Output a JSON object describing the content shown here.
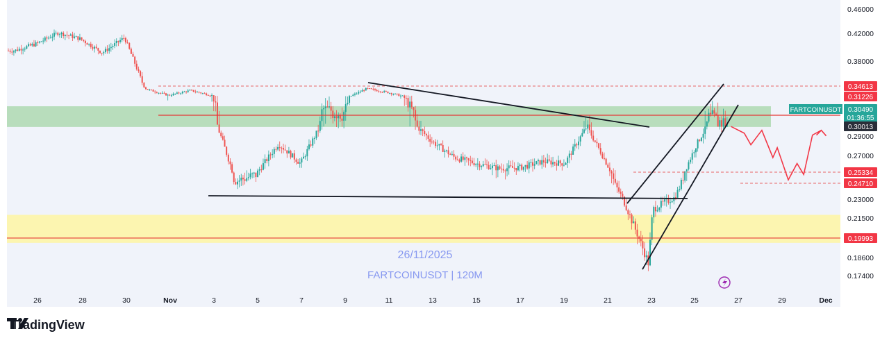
{
  "app": {
    "brand": "TradingView",
    "colors": {
      "background": "#ffffff",
      "chart_background": "#f0f3fa",
      "up": "#26a69a",
      "down": "#ef5350",
      "green_zone": "#a5d6a7",
      "yellow_zone": "#fff59d",
      "red_line": "#e53935",
      "trendline": "#131722",
      "forecast": "#f23645",
      "watermark": "#7c8ff0"
    }
  },
  "chart_data": {
    "type": "candlestick",
    "symbol": "FARTCOINUSDT",
    "timeframe": "120M",
    "watermark_date": "26/11/2025",
    "watermark_symbol": "FARTCOINUSDT | 120M",
    "y_axis_ticks": [
      "0.46000",
      "0.42000",
      "0.38000",
      "0.29000",
      "0.27000",
      "0.23000",
      "0.21500",
      "0.18600",
      "0.17400"
    ],
    "x_axis_ticks": [
      "26",
      "28",
      "30",
      "Nov",
      "3",
      "5",
      "7",
      "9",
      "11",
      "13",
      "15",
      "17",
      "19",
      "21",
      "23",
      "25",
      "27",
      "29",
      "Dec"
    ],
    "price_labels": [
      {
        "value": "0.34613",
        "style": "red"
      },
      {
        "value": "0.31226",
        "style": "red"
      },
      {
        "value": "0.30490",
        "style": "teal"
      },
      {
        "value": "01:36:55",
        "style": "teal"
      },
      {
        "value": "0.30013",
        "style": "dark"
      },
      {
        "value": "0.25334",
        "style": "red"
      },
      {
        "value": "0.24710",
        "style": "red"
      },
      {
        "value": "0.19993",
        "style": "red"
      }
    ],
    "symbol_tag": "FARTCOINUSDT",
    "price_path": [
      [
        "Oct 25",
        0.395
      ],
      [
        "Oct 26",
        0.405
      ],
      [
        "Oct 27",
        0.421
      ],
      [
        "Oct 28",
        0.412
      ],
      [
        "Oct 29",
        0.392
      ],
      [
        "Oct 30",
        0.414
      ],
      [
        "Oct 31",
        0.336
      ],
      [
        "Nov 1",
        0.316
      ],
      [
        "Nov 2",
        0.332
      ],
      [
        "Nov 3",
        0.315
      ],
      [
        "Nov 4",
        0.248
      ],
      [
        "Nov 5",
        0.252
      ],
      [
        "Nov 6",
        0.282
      ],
      [
        "Nov 7",
        0.262
      ],
      [
        "Nov 8",
        0.305
      ],
      [
        "Nov 9",
        0.304
      ],
      [
        "Nov 10",
        0.338
      ],
      [
        "Nov 11",
        0.325
      ],
      [
        "Nov 12",
        0.306
      ],
      [
        "Nov 13",
        0.284
      ],
      [
        "Nov 14",
        0.268
      ],
      [
        "Nov 15",
        0.262
      ],
      [
        "Nov 16",
        0.257
      ],
      [
        "Nov 17",
        0.258
      ],
      [
        "Nov 18",
        0.264
      ],
      [
        "Nov 19",
        0.262
      ],
      [
        "Nov 20",
        0.3
      ],
      [
        "Nov 21",
        0.258
      ],
      [
        "Nov 22",
        0.215
      ],
      [
        "Nov 22.8",
        0.182
      ],
      [
        "Nov 23",
        0.222
      ],
      [
        "Nov 24",
        0.232
      ],
      [
        "Nov 25",
        0.282
      ],
      [
        "Nov 25.5",
        0.302
      ],
      [
        "Nov 26.3",
        0.301
      ]
    ],
    "zones": [
      {
        "name": "resistance",
        "from": 0.2995,
        "to": 0.3065,
        "color": "green"
      },
      {
        "name": "support",
        "from": 0.1965,
        "to": 0.2175,
        "color": "yellow"
      }
    ],
    "horizontal_lines": [
      0.3012,
      0.19993
    ],
    "dashed_lines": [
      0.34613,
      0.25334,
      0.2471
    ],
    "forecast_path": [
      [
        "Nov 26.5",
        0.3
      ],
      [
        "Nov 27.1",
        0.293
      ],
      [
        "Nov 27.4",
        0.281
      ],
      [
        "Nov 27.9",
        0.296
      ],
      [
        "Nov 28.4",
        0.268
      ],
      [
        "Nov 28.6",
        0.278
      ],
      [
        "Nov 29.1",
        0.249
      ],
      [
        "Nov 29.5",
        0.262
      ],
      [
        "Nov 29.8",
        0.252
      ],
      [
        "Nov 30.2",
        0.291
      ],
      [
        "Nov 30.6",
        0.296
      ]
    ]
  }
}
